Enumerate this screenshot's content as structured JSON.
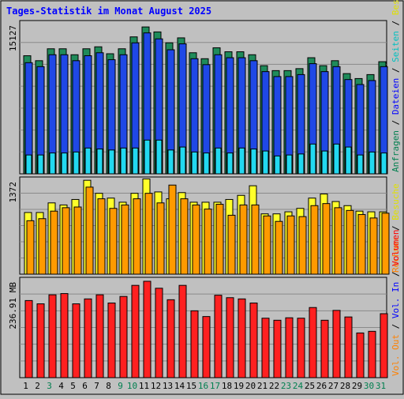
{
  "chart_data": {
    "type": "bar",
    "title": "Tages-Statistik im Monat August 2025",
    "days": [
      "1",
      "2",
      "3",
      "4",
      "5",
      "6",
      "7",
      "8",
      "9",
      "10",
      "11",
      "12",
      "13",
      "14",
      "15",
      "16",
      "17",
      "18",
      "19",
      "20",
      "21",
      "22",
      "23",
      "24",
      "25",
      "26",
      "27",
      "28",
      "29",
      "30",
      "31"
    ],
    "weekend_days": [
      "3",
      "9",
      "10",
      "16",
      "17",
      "23",
      "24",
      "30",
      "31"
    ],
    "panels": [
      {
        "id": "requests",
        "ymax_label": "15127",
        "ymax": 15127,
        "right_label": [
          {
            "text": "Anfragen",
            "color": "#007f4f"
          },
          {
            "text": " / ",
            "color": "#000000"
          },
          {
            "text": "Dateien",
            "color": "#0000ff"
          },
          {
            "text": " / ",
            "color": "#000000"
          },
          {
            "text": "Seiten",
            "color": "#00c0c0"
          },
          {
            "text": " / ",
            "color": "#000000"
          },
          {
            "text": "Besuche",
            "color": "#e0e000"
          }
        ],
        "series": [
          {
            "name": "Anfragen",
            "color": "#1f8b5a",
            "values": [
              11900,
              11400,
              12600,
              12600,
              12000,
              12600,
              12800,
              12100,
              12600,
              13800,
              14800,
              14300,
              13200,
              13700,
              12200,
              11600,
              12700,
              12300,
              12300,
              12000,
              10900,
              10400,
              10400,
              10600,
              11700,
              10900,
              11400,
              10100,
              9600,
              10000,
              11300
            ]
          },
          {
            "name": "Dateien",
            "color": "#1f48e6",
            "values": [
              11200,
              10800,
              12000,
              12000,
              11400,
              11900,
              12200,
              11500,
              12000,
              13200,
              14200,
              13600,
              12500,
              13100,
              11600,
              11000,
              12000,
              11700,
              11700,
              11400,
              10300,
              9800,
              9800,
              10000,
              11100,
              10300,
              10800,
              9500,
              9000,
              9400,
              10800
            ]
          },
          {
            "name": "Seiten",
            "color": "#22d8f0",
            "values": [
              1900,
              1900,
              2100,
              2100,
              2200,
              2600,
              2500,
              2400,
              2600,
              2600,
              3400,
              3400,
              2400,
              2700,
              2200,
              2100,
              2600,
              2100,
              2600,
              2500,
              2300,
              1800,
              1900,
              2000,
              3000,
              2300,
              3000,
              2700,
              1900,
              2200,
              2100
            ]
          }
        ]
      },
      {
        "id": "visits",
        "ymax_label": "1372",
        "ymax": 1372,
        "right_label": [
          {
            "text": "Rechner",
            "color": "#ff8000"
          },
          {
            "text": " / ",
            "color": "#000000"
          },
          {
            "text": "Besuche",
            "color": "#e0e000"
          }
        ],
        "series": [
          {
            "name": "Besuche",
            "color": "#ffff2a",
            "values": [
              900,
              900,
              1040,
              1010,
              1090,
              1370,
              1180,
              1110,
              1050,
              1180,
              1390,
              1200,
              1100,
              1190,
              1050,
              1050,
              1050,
              1090,
              1150,
              1290,
              880,
              880,
              910,
              960,
              1110,
              1170,
              1060,
              1000,
              920,
              910,
              910
            ]
          },
          {
            "name": "Rechner",
            "color": "#ff9a00",
            "values": [
              780,
              810,
              920,
              970,
              980,
              1270,
              1100,
              960,
              1010,
              1100,
              1180,
              1040,
              1300,
              1100,
              1010,
              950,
              1020,
              860,
              1010,
              1010,
              850,
              770,
              850,
              840,
              1000,
              1030,
              970,
              930,
              870,
              820,
              890
            ]
          }
        ]
      },
      {
        "id": "volume",
        "ymax_label": "236.91 MB",
        "ymax": 236.91,
        "right_label": [
          {
            "text": "Vol. Out",
            "color": "#ff8000"
          },
          {
            "text": " / ",
            "color": "#000000"
          },
          {
            "text": "Vol. In",
            "color": "#0000ff"
          },
          {
            "text": " / ",
            "color": "#000000"
          },
          {
            "text": "Volumen",
            "color": "#ff0000"
          }
        ],
        "series": [
          {
            "name": "Volumen",
            "color": "#ff2020",
            "values": [
              188,
              180,
              202,
              205,
              180,
              192,
              202,
              182,
              198,
              225,
              235,
              218,
              190,
              225,
              163,
              149,
              201,
              195,
              192,
              182,
              145,
              140,
              146,
              145,
              171,
              140,
              164,
              148,
              109,
              113,
              156
            ]
          }
        ]
      }
    ]
  }
}
